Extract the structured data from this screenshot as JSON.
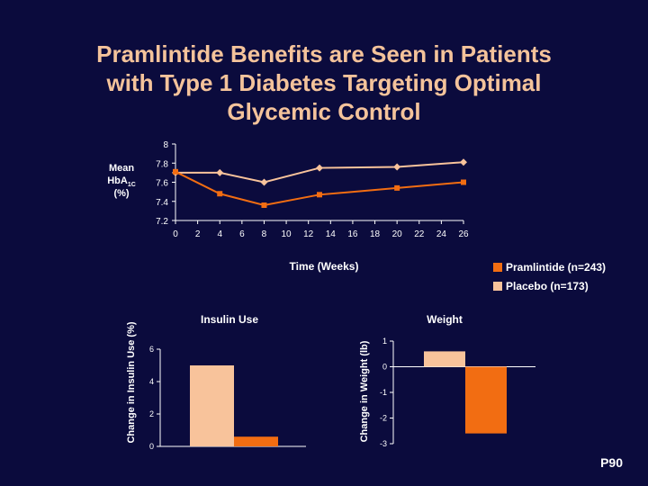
{
  "title_lines": [
    "Pramlintide Benefits are Seen in Patients",
    "with Type 1 Diabetes Targeting Optimal",
    "Glycemic Control"
  ],
  "page_number": "P90",
  "colors": {
    "background": "#0b0b3d",
    "title": "#f4c39b",
    "pramlintide": "#f26d12",
    "placebo": "#f8c39b",
    "axis": "#ffffff"
  },
  "legend": [
    {
      "label": "Pramlintide (n=243)",
      "color": "#f26d12"
    },
    {
      "label": "Placebo (n=173)",
      "color": "#f8c39b"
    }
  ],
  "chart_data": [
    {
      "type": "line",
      "title": "",
      "xlabel": "Time (Weeks)",
      "ylabel_lines": [
        "Mean",
        "HbA1C",
        "(%)"
      ],
      "xlim": [
        0,
        26
      ],
      "ylim": [
        7.2,
        8
      ],
      "x_ticks": [
        0,
        2,
        4,
        6,
        8,
        10,
        12,
        14,
        16,
        18,
        20,
        22,
        24,
        26
      ],
      "y_ticks": [
        "7.2",
        "7.4",
        "7.6",
        "7.8",
        "8"
      ],
      "series": [
        {
          "name": "Placebo (n=173)",
          "x": [
            0,
            4,
            8,
            13,
            20,
            26
          ],
          "y": [
            7.7,
            7.7,
            7.6,
            7.75,
            7.76,
            7.81
          ]
        },
        {
          "name": "Pramlintide (n=243)",
          "x": [
            0,
            4,
            8,
            13,
            20,
            26
          ],
          "y": [
            7.71,
            7.48,
            7.36,
            7.47,
            7.54,
            7.6
          ]
        }
      ]
    },
    {
      "type": "bar",
      "title": "Insulin Use",
      "ylabel": "Change in Insulin Use (%)",
      "ylim": [
        0,
        6
      ],
      "y_ticks": [
        "0",
        "2",
        "4",
        "6"
      ],
      "series": [
        {
          "name": "Placebo (n=173)",
          "value": 5.0
        },
        {
          "name": "Pramlintide (n=243)",
          "value": 0.6
        }
      ]
    },
    {
      "type": "bar",
      "title": "Weight",
      "ylabel": "Change in Weight (lb)",
      "ylim": [
        -3,
        1
      ],
      "y_ticks": [
        "-3",
        "-2",
        "-1",
        "0",
        "1"
      ],
      "series": [
        {
          "name": "Placebo (n=173)",
          "value": 0.6
        },
        {
          "name": "Pramlintide (n=243)",
          "value": -2.6
        }
      ]
    }
  ]
}
